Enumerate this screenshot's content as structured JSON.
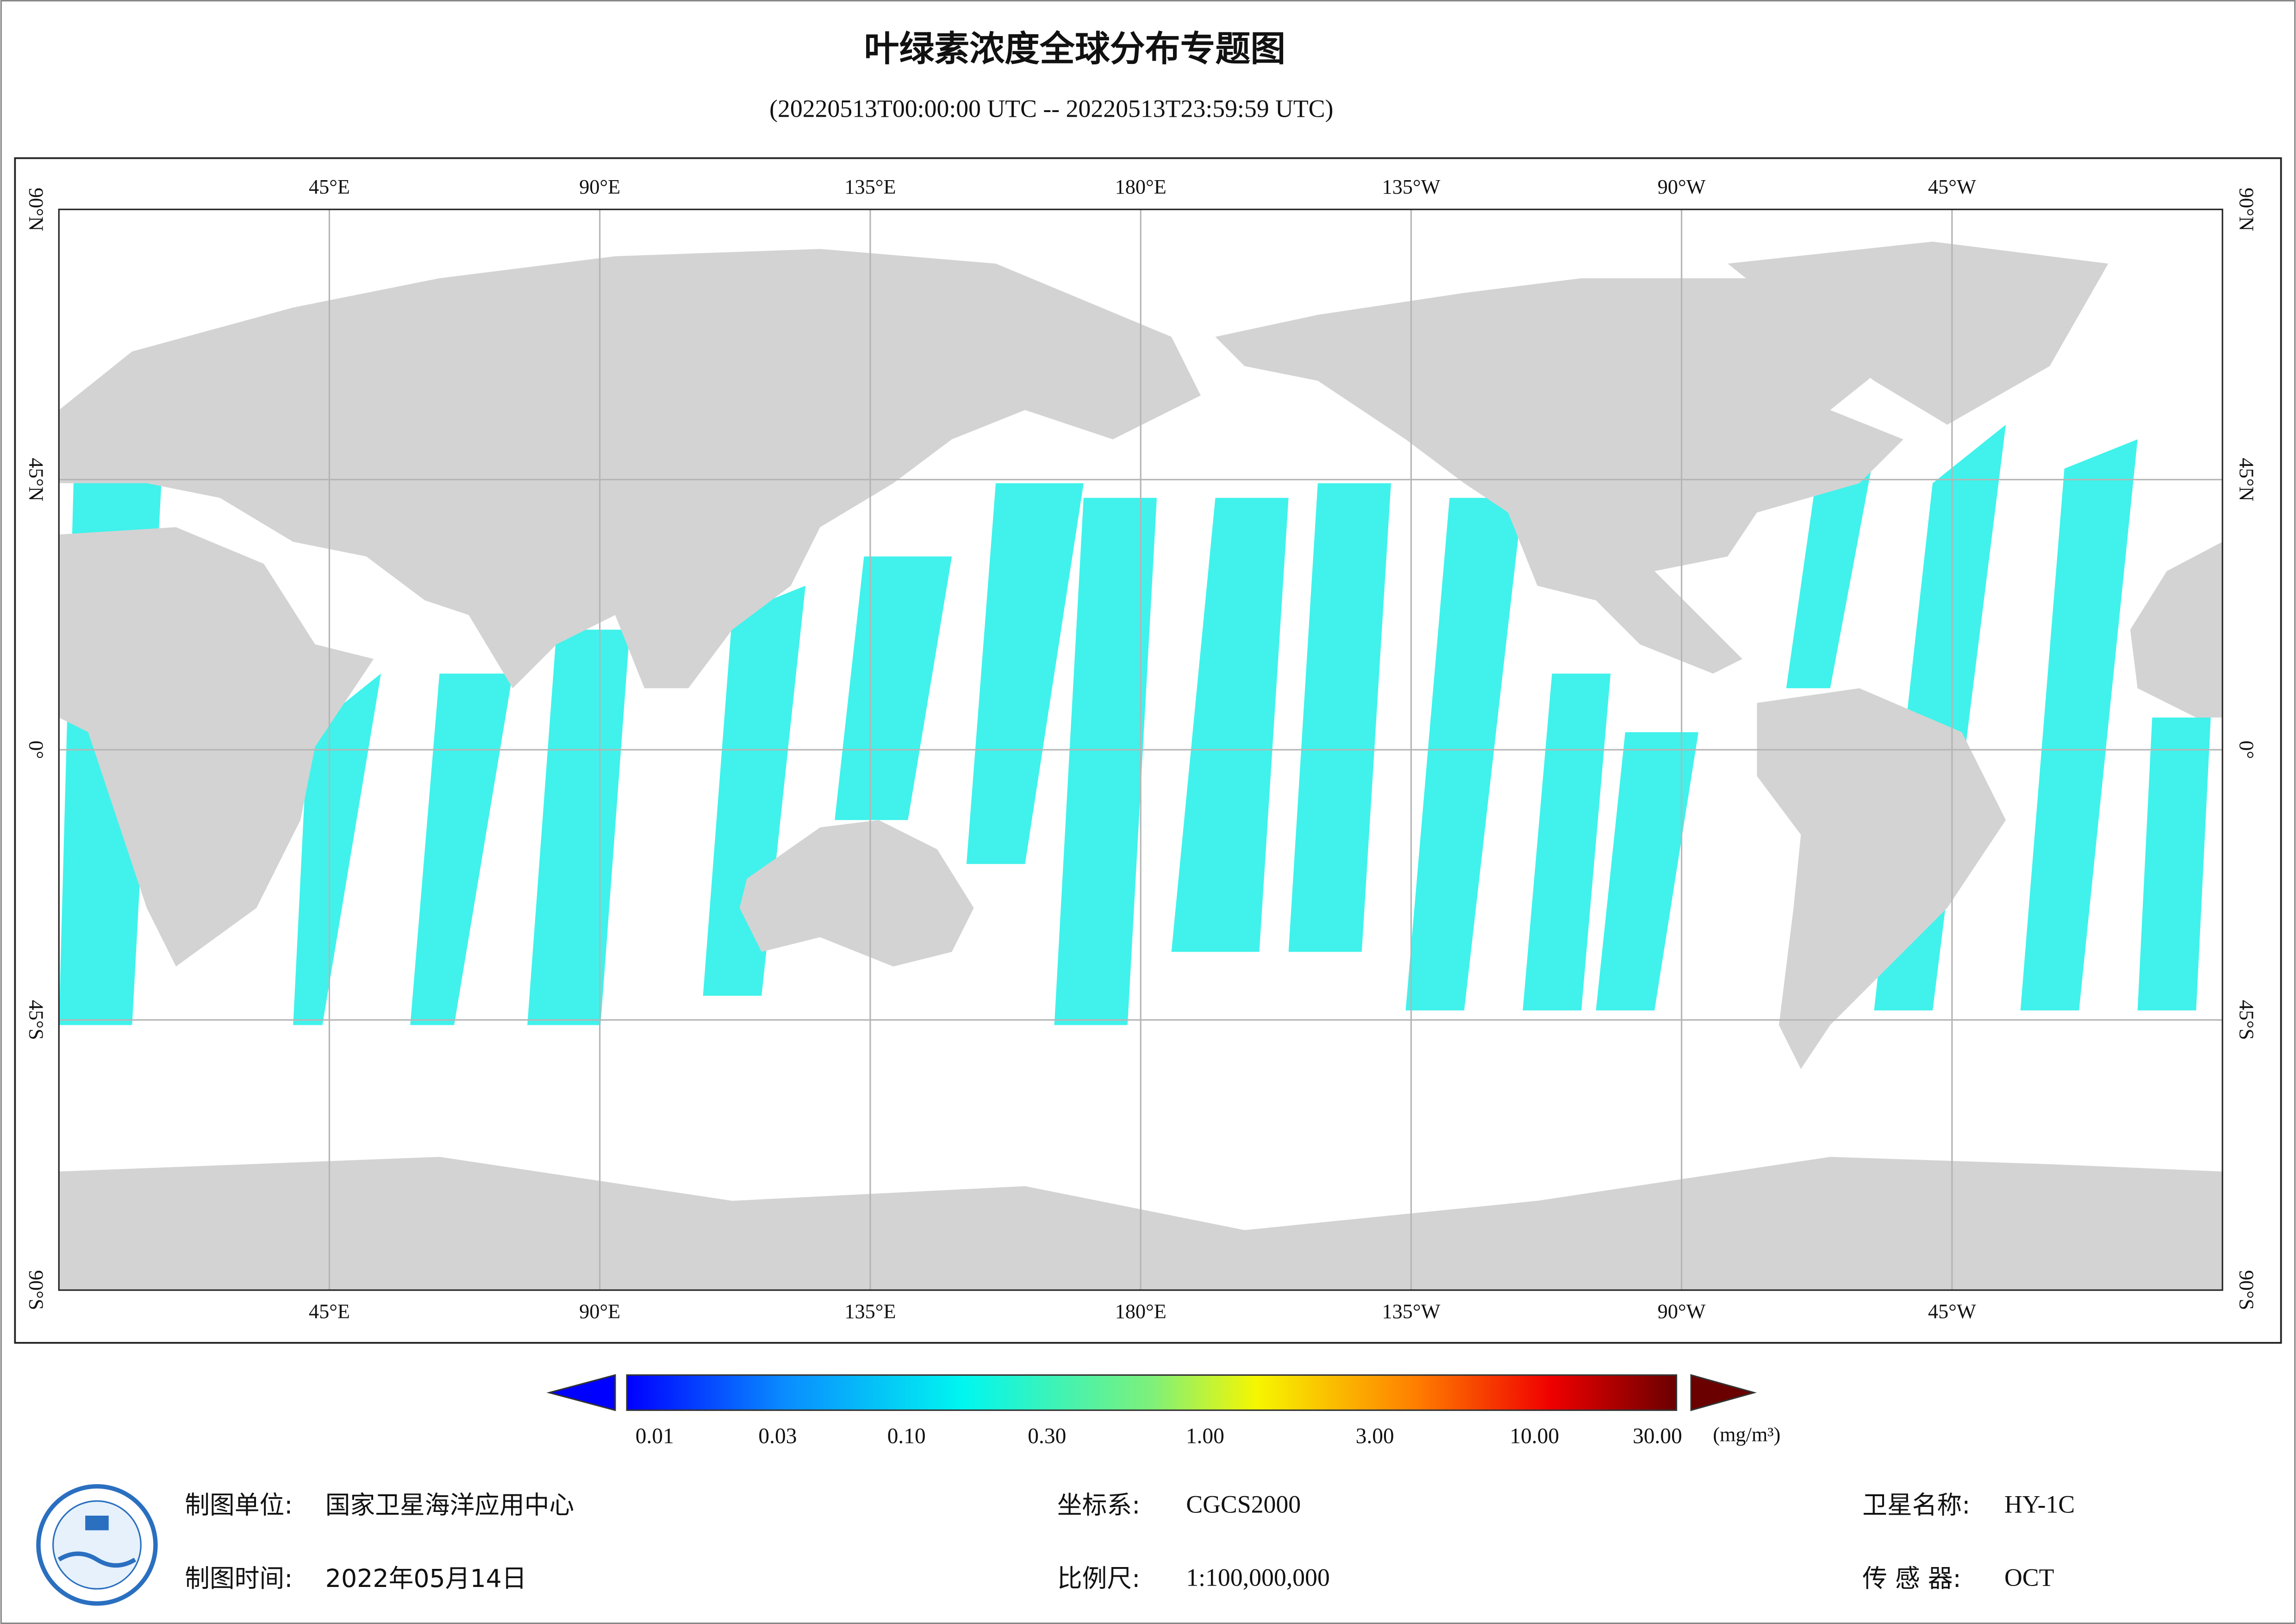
{
  "header": {
    "title": "叶绿素浓度全球分布专题图",
    "subtitle": "(20220513T00:00:00 UTC -- 20220513T23:59:59 UTC)"
  },
  "map": {
    "lon_labels": [
      "45°E",
      "90°E",
      "135°E",
      "180°E",
      "135°W",
      "90°W",
      "45°W"
    ],
    "lat_labels": [
      "90°N",
      "45°N",
      "0°",
      "45°S",
      "90°S"
    ]
  },
  "colorbar": {
    "ticks": [
      "0.01",
      "0.03",
      "0.10",
      "0.30",
      "1.00",
      "3.00",
      "10.00",
      "30.00"
    ],
    "unit": "(mg/m³)"
  },
  "footer": {
    "producer_label": "制图单位:",
    "producer": "国家卫星海洋应用中心",
    "crs_label": "坐标系:",
    "crs": "CGCS2000",
    "satellite_label": "卫星名称:",
    "satellite": "HY-1C",
    "date_label": "制图时间:",
    "date": "2022年05月14日",
    "scale_label": "比例尺:",
    "scale": "1:100,000,000",
    "sensor_label": "传 感 器:",
    "sensor": "OCT"
  }
}
